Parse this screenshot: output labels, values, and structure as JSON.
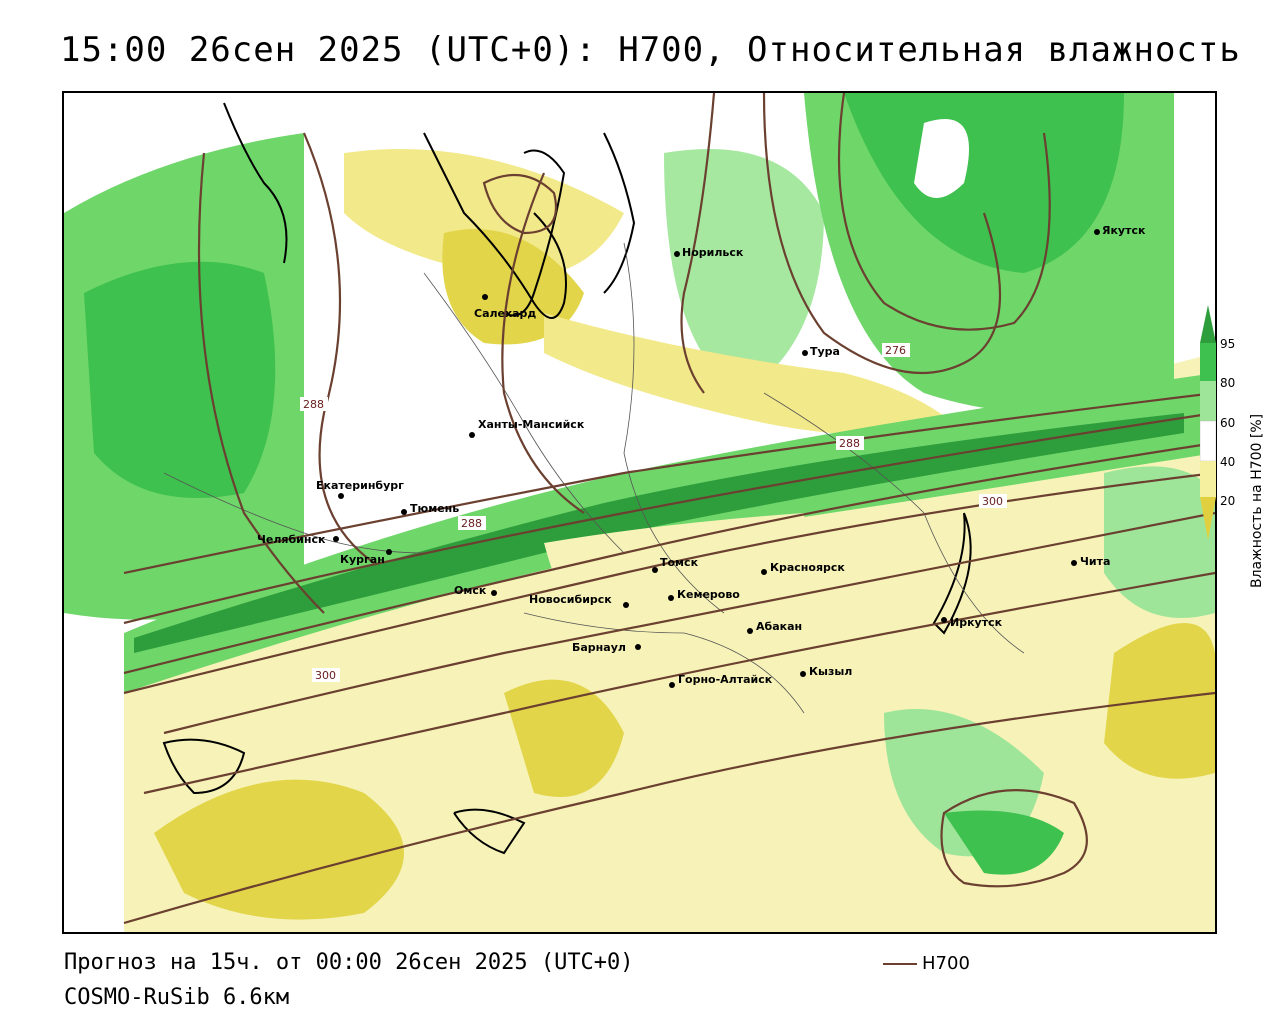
{
  "title": "15:00 26сен 2025 (UTC+0): H700, Относительная влажность",
  "footer": {
    "forecast": "Прогноз на 15ч. от 00:00 26сен 2025 (UTC+0)",
    "model": "COSMO-RuSib 6.6км"
  },
  "legend": {
    "line_label": "H700",
    "line_color": "#6b4030"
  },
  "colorbar": {
    "title": "Влажность на H700 [%]",
    "ticks": [
      "95",
      "80",
      "60",
      "40",
      "20"
    ],
    "colors": [
      "#2e9e3c",
      "#3ec14e",
      "#9ee59a",
      "#ffffff",
      "#f5f0a0",
      "#e0d040"
    ]
  },
  "cities": [
    {
      "name": "Норильск"
    },
    {
      "name": "Якутск"
    },
    {
      "name": "Салехард"
    },
    {
      "name": "Тура"
    },
    {
      "name": "Ханты-Мансийск"
    },
    {
      "name": "Екатеринбург"
    },
    {
      "name": "Тюмень"
    },
    {
      "name": "Челябинск"
    },
    {
      "name": "Курган"
    },
    {
      "name": "Омск"
    },
    {
      "name": "Томск"
    },
    {
      "name": "Новосибирск"
    },
    {
      "name": "Кемерово"
    },
    {
      "name": "Красноярск"
    },
    {
      "name": "Барнаул"
    },
    {
      "name": "Абакан"
    },
    {
      "name": "Горно-Алтайск"
    },
    {
      "name": "Кызыл"
    },
    {
      "name": "Иркутск"
    },
    {
      "name": "Чита"
    }
  ],
  "contour_labels": [
    "276",
    "288",
    "288",
    "288",
    "300",
    "300"
  ]
}
